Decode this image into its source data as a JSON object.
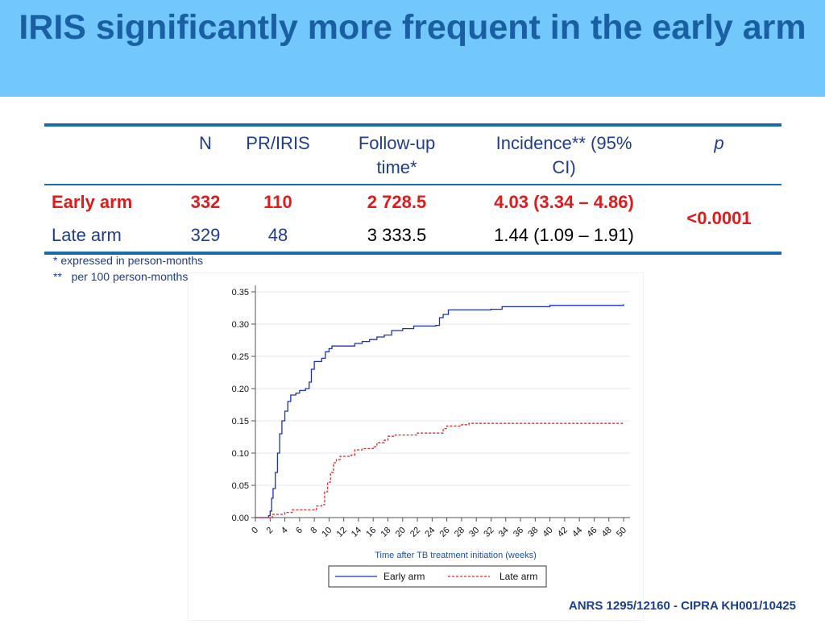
{
  "title": "IRIS significantly more frequent in the early arm",
  "table": {
    "headers": [
      "",
      "N",
      "PR/IRIS",
      "Follow-up time*",
      "Incidence** (95% CI)",
      "p"
    ],
    "rows": [
      {
        "label": "Early arm",
        "n": "332",
        "pr_iris": "110",
        "followup": "2 728.5",
        "incidence": "4.03 (3.34 – 4.86)"
      },
      {
        "label": "Late arm",
        "n": "329",
        "pr_iris": "48",
        "followup": "3 333.5",
        "incidence": "1.44 (1.09 – 1.91)"
      }
    ],
    "p_value": "<0.0001"
  },
  "notes": {
    "note1": "*    expressed in person-months",
    "note2": "**   per 100 person-months"
  },
  "chart_data": {
    "type": "line",
    "xlabel": "Time after TB treatment initiation (weeks)",
    "ylabel": "",
    "xlim": [
      0,
      50
    ],
    "ylim": [
      0,
      0.35
    ],
    "x_ticks": [
      0,
      2,
      4,
      6,
      8,
      10,
      12,
      14,
      16,
      18,
      20,
      22,
      24,
      26,
      28,
      30,
      32,
      34,
      36,
      38,
      40,
      42,
      44,
      46,
      48,
      50
    ],
    "y_ticks": [
      "0.00",
      "0.05",
      "0.10",
      "0.15",
      "0.20",
      "0.25",
      "0.30",
      "0.35"
    ],
    "legend_position": "bottom",
    "grid": true,
    "series": [
      {
        "name": "Early arm",
        "color": "#1a2fc7",
        "dash": "solid",
        "points": [
          [
            0,
            0
          ],
          [
            1.5,
            0
          ],
          [
            1.8,
            0.003
          ],
          [
            2.0,
            0.01
          ],
          [
            2.2,
            0.03
          ],
          [
            2.4,
            0.045
          ],
          [
            2.7,
            0.07
          ],
          [
            3.0,
            0.1
          ],
          [
            3.3,
            0.13
          ],
          [
            3.6,
            0.15
          ],
          [
            4.0,
            0.165
          ],
          [
            4.4,
            0.18
          ],
          [
            4.8,
            0.19
          ],
          [
            5.5,
            0.193
          ],
          [
            6.0,
            0.197
          ],
          [
            6.8,
            0.2
          ],
          [
            7.3,
            0.21
          ],
          [
            7.6,
            0.23
          ],
          [
            8.0,
            0.242
          ],
          [
            9.0,
            0.247
          ],
          [
            9.5,
            0.257
          ],
          [
            10.0,
            0.262
          ],
          [
            10.4,
            0.266
          ],
          [
            12.0,
            0.266
          ],
          [
            13.5,
            0.27
          ],
          [
            14.5,
            0.273
          ],
          [
            15.5,
            0.276
          ],
          [
            16.5,
            0.28
          ],
          [
            17.5,
            0.283
          ],
          [
            18.5,
            0.29
          ],
          [
            20.0,
            0.293
          ],
          [
            21.5,
            0.297
          ],
          [
            24.5,
            0.298
          ],
          [
            25.0,
            0.31
          ],
          [
            25.5,
            0.315
          ],
          [
            26.2,
            0.322
          ],
          [
            32.0,
            0.323
          ],
          [
            33.5,
            0.327
          ],
          [
            40.0,
            0.329
          ],
          [
            50.0,
            0.331
          ]
        ]
      },
      {
        "name": "Late arm",
        "color": "#e32626",
        "dash": "dashed",
        "points": [
          [
            0,
            0
          ],
          [
            2.0,
            0
          ],
          [
            2.3,
            0.005
          ],
          [
            4.0,
            0.008
          ],
          [
            5.0,
            0.012
          ],
          [
            8.0,
            0.012
          ],
          [
            8.3,
            0.018
          ],
          [
            9.0,
            0.02
          ],
          [
            9.4,
            0.04
          ],
          [
            9.8,
            0.055
          ],
          [
            10.2,
            0.07
          ],
          [
            10.6,
            0.085
          ],
          [
            11.0,
            0.09
          ],
          [
            11.5,
            0.095
          ],
          [
            13.0,
            0.097
          ],
          [
            13.5,
            0.105
          ],
          [
            14.5,
            0.107
          ],
          [
            16.0,
            0.11
          ],
          [
            16.5,
            0.116
          ],
          [
            17.5,
            0.12
          ],
          [
            18.0,
            0.126
          ],
          [
            19.0,
            0.128
          ],
          [
            21.0,
            0.128
          ],
          [
            22.0,
            0.131
          ],
          [
            25.0,
            0.131
          ],
          [
            25.5,
            0.138
          ],
          [
            26.0,
            0.142
          ],
          [
            28.0,
            0.144
          ],
          [
            29.0,
            0.146
          ],
          [
            50.0,
            0.146
          ]
        ]
      }
    ]
  },
  "footer": "ANRS 1295/12160 - CIPRA KH001/10425"
}
